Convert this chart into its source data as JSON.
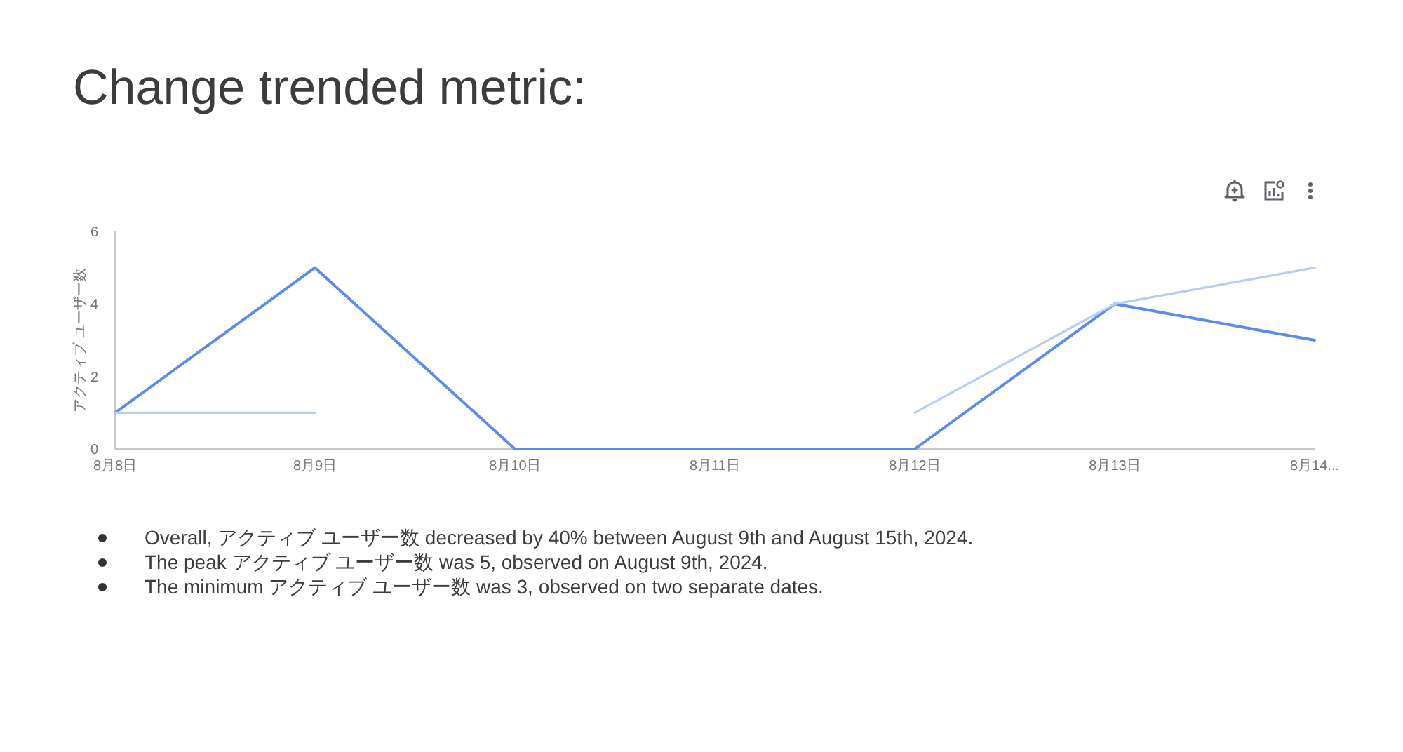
{
  "chart_data": {
    "type": "line",
    "title": "Change trended metric:",
    "ylabel": "アクティブ ユーザー数",
    "categories": [
      "8月8日",
      "8月9日",
      "8月10日",
      "8月11日",
      "8月12日",
      "8月13日",
      "8月14..."
    ],
    "series": [
      {
        "color": "#5b8ce6",
        "values": [
          1,
          5,
          0,
          0,
          0,
          4,
          3
        ]
      },
      {
        "color": "#b7cdf3",
        "values": [
          1,
          1,
          null,
          null,
          1,
          4,
          5
        ]
      }
    ],
    "ylim": [
      0,
      6
    ],
    "yticks": [
      0,
      2,
      4,
      6
    ],
    "annotations": [
      "Overall, アクティブ ユーザー数 decreased by 40% between August 9th and August 15th, 2024.",
      "The peak アクティブ ユーザー数 was 5, observed on August 9th, 2024.",
      "The minimum アクティブ ユーザー数 was 3, observed on two separate dates."
    ]
  }
}
